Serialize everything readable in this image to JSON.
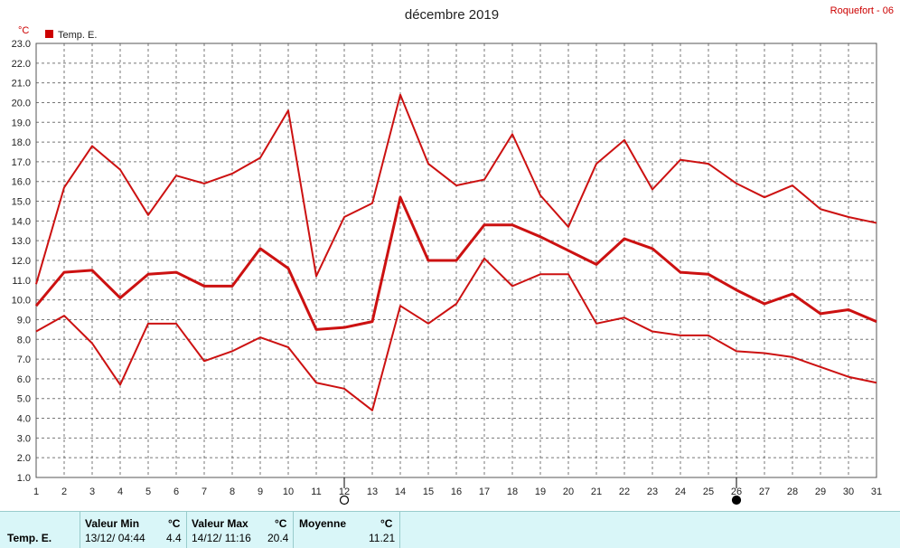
{
  "chart_data": {
    "type": "line",
    "title": "décembre 2019",
    "station": "Roquefort - 06",
    "yunit": "°C",
    "legend": "Temp. E.",
    "ylim": [
      1.0,
      23.0
    ],
    "y_ticks": [
      "1.0",
      "2.0",
      "3.0",
      "4.0",
      "5.0",
      "6.0",
      "7.0",
      "8.0",
      "9.0",
      "10.0",
      "11.0",
      "12.0",
      "13.0",
      "14.0",
      "15.0",
      "16.0",
      "17.0",
      "18.0",
      "19.0",
      "20.0",
      "21.0",
      "22.0",
      "23.0"
    ],
    "x": [
      1,
      2,
      3,
      4,
      5,
      6,
      7,
      8,
      9,
      10,
      11,
      12,
      13,
      14,
      15,
      16,
      17,
      18,
      19,
      20,
      21,
      22,
      23,
      24,
      25,
      26,
      27,
      28,
      29,
      30,
      31
    ],
    "grid": true,
    "series": [
      {
        "values": [
          10.8,
          15.7,
          17.8,
          16.6,
          14.3,
          16.3,
          15.9,
          16.4,
          17.2,
          19.6,
          11.2,
          14.2,
          14.9,
          20.4,
          16.9,
          15.8,
          16.1,
          18.4,
          15.3,
          13.7,
          16.9,
          18.1,
          15.6,
          17.1,
          16.9,
          15.9,
          15.2,
          15.8,
          14.6,
          14.2,
          13.9
        ]
      },
      {
        "values": [
          9.7,
          11.4,
          11.5,
          10.1,
          11.3,
          11.4,
          10.7,
          10.7,
          12.6,
          11.6,
          8.5,
          8.6,
          8.9,
          15.2,
          12.0,
          12.0,
          13.8,
          13.8,
          13.2,
          12.5,
          11.8,
          13.1,
          12.6,
          11.4,
          11.3,
          10.5,
          9.8,
          10.3,
          9.3,
          9.5,
          8.9
        ]
      },
      {
        "values": [
          8.4,
          9.2,
          7.8,
          5.7,
          8.8,
          8.8,
          6.9,
          7.4,
          8.1,
          7.6,
          5.8,
          5.5,
          4.4,
          9.7,
          8.8,
          9.8,
          12.1,
          10.7,
          11.3,
          11.3,
          8.8,
          9.1,
          8.4,
          8.2,
          8.2,
          7.4,
          7.3,
          7.1,
          6.6,
          6.1,
          5.8
        ]
      }
    ],
    "moon_phases": [
      {
        "day": 12,
        "phase": "full"
      },
      {
        "day": 26,
        "phase": "new"
      }
    ],
    "colors": {
      "line": "#cc1111",
      "grid": "#777777",
      "footer": "#d9f6f8"
    }
  },
  "footer": {
    "row_label": "Temp. E.",
    "min_label": "Valeur Min",
    "min_unit": "°C",
    "min_date": "13/12/  04:44",
    "min_value": "4.4",
    "max_label": "Valeur Max",
    "max_unit": "°C",
    "max_date": "14/12/  11:16",
    "max_value": "20.4",
    "avg_label": "Moyenne",
    "avg_unit": "°C",
    "avg_value": "11.21"
  }
}
